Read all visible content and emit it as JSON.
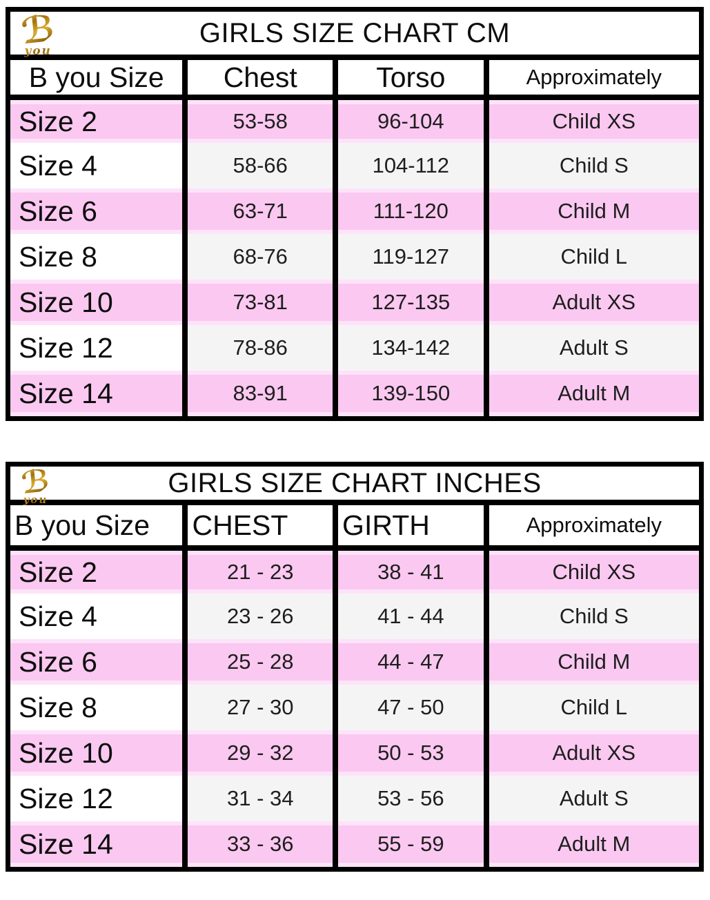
{
  "logo": {
    "b": "ℬ",
    "sub": "you"
  },
  "colors": {
    "pink": "#fac8f0",
    "pink-edge": "#fde3f9",
    "light": "#f5f4f5",
    "border": "#000000"
  },
  "tables": [
    {
      "title": "GIRLS SIZE CHART CM",
      "headers": [
        "B you Size",
        "Chest",
        "Torso",
        "Approximately"
      ],
      "rows": [
        [
          "Size 2",
          "53-58",
          "96-104",
          "Child XS"
        ],
        [
          "Size 4",
          "58-66",
          "104-112",
          "Child S"
        ],
        [
          "Size 6",
          "63-71",
          "111-120",
          "Child M"
        ],
        [
          "Size 8",
          "68-76",
          "119-127",
          "Child L"
        ],
        [
          "Size 10",
          "73-81",
          "127-135",
          "Adult XS"
        ],
        [
          "Size 12",
          "78-86",
          "134-142",
          "Adult S"
        ],
        [
          "Size 14",
          "83-91",
          "139-150",
          "Adult M"
        ]
      ]
    },
    {
      "title": "GIRLS SIZE CHART INCHES",
      "headers": [
        "B you Size",
        "CHEST",
        "GIRTH",
        "Approximately"
      ],
      "rows": [
        [
          "Size 2",
          "21 - 23",
          "38 - 41",
          "Child XS"
        ],
        [
          "Size 4",
          "23 - 26",
          "41 - 44",
          "Child S"
        ],
        [
          "Size 6",
          "25 - 28",
          "44 - 47",
          "Child M"
        ],
        [
          "Size 8",
          "27 - 30",
          "47 - 50",
          "Child L"
        ],
        [
          "Size 10",
          "29 - 32",
          "50 - 53",
          "Adult XS"
        ],
        [
          "Size 12",
          "31 - 34",
          "53 - 56",
          "Adult S"
        ],
        [
          "Size 14",
          "33 - 36",
          "55 - 59",
          "Adult M"
        ]
      ]
    }
  ]
}
